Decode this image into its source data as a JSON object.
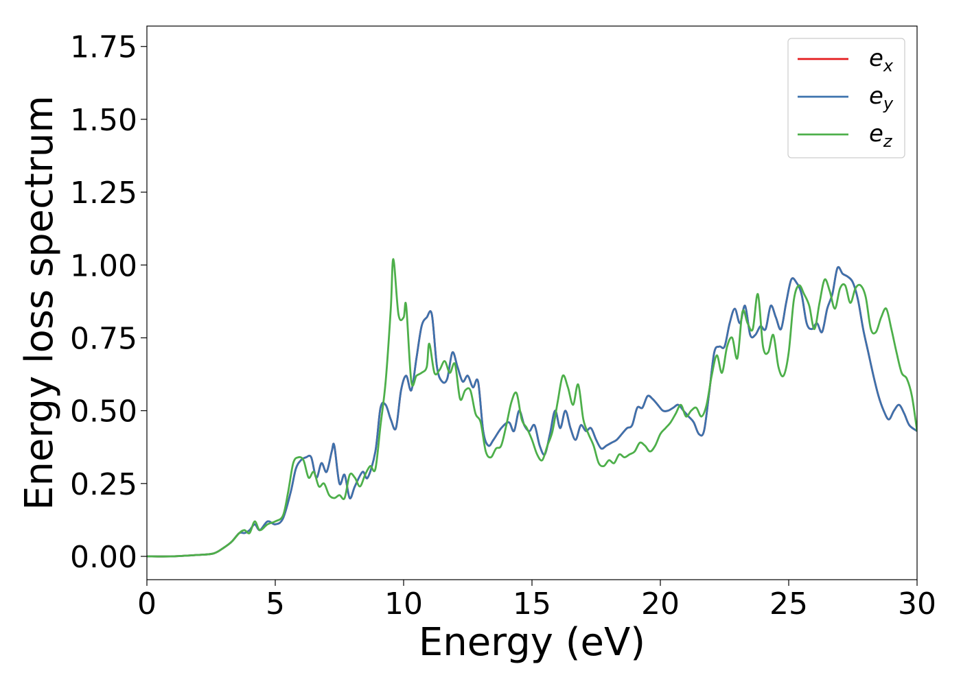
{
  "chart_data": {
    "type": "line",
    "xlabel": "Energy (eV)",
    "ylabel": "Energy loss spectrum",
    "xlim": [
      0,
      30
    ],
    "ylim": [
      -0.08,
      1.82
    ],
    "xticks": [
      0,
      5,
      10,
      15,
      20,
      25,
      30
    ],
    "xtick_labels": [
      "0",
      "5",
      "10",
      "15",
      "20",
      "25",
      "30"
    ],
    "yticks": [
      0.0,
      0.25,
      0.5,
      0.75,
      1.0,
      1.25,
      1.5,
      1.75
    ],
    "ytick_labels": [
      "0.00",
      "0.25",
      "0.50",
      "0.75",
      "1.00",
      "1.25",
      "1.50",
      "1.75"
    ],
    "grid": false,
    "legend_position": "top-right",
    "series": [
      {
        "name": "e_x",
        "label_base": "e",
        "label_sub": "x",
        "color": "#e41a1c",
        "x": [
          0,
          1,
          2,
          2.6,
          3.0,
          3.3,
          3.6,
          3.8,
          4.0,
          4.2,
          4.4,
          4.7,
          5.0,
          5.3,
          5.6,
          5.8,
          6.0,
          6.2,
          6.4,
          6.6,
          6.8,
          7.0,
          7.2,
          7.3,
          7.5,
          7.7,
          7.9,
          8.1,
          8.4,
          8.6,
          8.9,
          9.1,
          9.3,
          9.5,
          9.7,
          9.9,
          10.1,
          10.3,
          10.5,
          10.7,
          10.9,
          11.1,
          11.3,
          11.5,
          11.7,
          11.9,
          12.1,
          12.3,
          12.5,
          12.7,
          12.9,
          13.1,
          13.3,
          13.5,
          13.8,
          14.1,
          14.3,
          14.5,
          14.7,
          14.9,
          15.1,
          15.3,
          15.5,
          15.7,
          15.9,
          16.1,
          16.3,
          16.5,
          16.7,
          16.9,
          17.1,
          17.3,
          17.5,
          17.7,
          17.9,
          18.1,
          18.3,
          18.5,
          18.7,
          18.9,
          19.1,
          19.3,
          19.5,
          19.7,
          19.9,
          20.1,
          20.3,
          20.5,
          20.7,
          20.9,
          21.1,
          21.3,
          21.5,
          21.7,
          21.9,
          22.1,
          22.3,
          22.5,
          22.7,
          22.9,
          23.1,
          23.3,
          23.5,
          23.7,
          23.9,
          24.1,
          24.3,
          24.5,
          24.7,
          24.9,
          25.1,
          25.3,
          25.5,
          25.7,
          25.9,
          26.1,
          26.3,
          26.5,
          26.7,
          26.9,
          27.1,
          27.3,
          27.5,
          27.7,
          27.9,
          28.1,
          28.3,
          28.5,
          28.7,
          28.9,
          29.1,
          29.3,
          29.5,
          29.7,
          30.0
        ],
        "y": [
          0.0,
          0.0,
          0.005,
          0.01,
          0.03,
          0.05,
          0.08,
          0.08,
          0.09,
          0.11,
          0.09,
          0.12,
          0.11,
          0.13,
          0.22,
          0.3,
          0.33,
          0.34,
          0.34,
          0.27,
          0.32,
          0.29,
          0.36,
          0.38,
          0.25,
          0.28,
          0.2,
          0.24,
          0.29,
          0.27,
          0.36,
          0.51,
          0.52,
          0.47,
          0.44,
          0.57,
          0.62,
          0.57,
          0.68,
          0.79,
          0.82,
          0.83,
          0.65,
          0.6,
          0.61,
          0.7,
          0.65,
          0.6,
          0.62,
          0.58,
          0.6,
          0.43,
          0.38,
          0.4,
          0.44,
          0.46,
          0.43,
          0.5,
          0.45,
          0.43,
          0.45,
          0.38,
          0.35,
          0.42,
          0.5,
          0.44,
          0.5,
          0.44,
          0.4,
          0.45,
          0.43,
          0.44,
          0.4,
          0.37,
          0.38,
          0.39,
          0.4,
          0.42,
          0.44,
          0.45,
          0.51,
          0.51,
          0.55,
          0.54,
          0.52,
          0.5,
          0.5,
          0.51,
          0.52,
          0.5,
          0.48,
          0.46,
          0.42,
          0.43,
          0.56,
          0.7,
          0.72,
          0.72,
          0.8,
          0.85,
          0.8,
          0.86,
          0.76,
          0.76,
          0.79,
          0.78,
          0.86,
          0.82,
          0.78,
          0.87,
          0.95,
          0.94,
          0.9,
          0.8,
          0.78,
          0.8,
          0.77,
          0.85,
          0.9,
          0.99,
          0.97,
          0.96,
          0.94,
          0.88,
          0.78,
          0.7,
          0.62,
          0.55,
          0.5,
          0.47,
          0.5,
          0.52,
          0.49,
          0.45,
          0.43
        ]
      },
      {
        "name": "e_y",
        "label_base": "e",
        "label_sub": "y",
        "color": "#3c72ad",
        "x": [
          0,
          1,
          2,
          2.6,
          3.0,
          3.3,
          3.6,
          3.8,
          4.0,
          4.2,
          4.4,
          4.7,
          5.0,
          5.3,
          5.6,
          5.8,
          6.0,
          6.2,
          6.4,
          6.6,
          6.8,
          7.0,
          7.2,
          7.3,
          7.5,
          7.7,
          7.9,
          8.1,
          8.4,
          8.6,
          8.9,
          9.1,
          9.3,
          9.5,
          9.7,
          9.9,
          10.1,
          10.3,
          10.5,
          10.7,
          10.9,
          11.1,
          11.3,
          11.5,
          11.7,
          11.9,
          12.1,
          12.3,
          12.5,
          12.7,
          12.9,
          13.1,
          13.3,
          13.5,
          13.8,
          14.1,
          14.3,
          14.5,
          14.7,
          14.9,
          15.1,
          15.3,
          15.5,
          15.7,
          15.9,
          16.1,
          16.3,
          16.5,
          16.7,
          16.9,
          17.1,
          17.3,
          17.5,
          17.7,
          17.9,
          18.1,
          18.3,
          18.5,
          18.7,
          18.9,
          19.1,
          19.3,
          19.5,
          19.7,
          19.9,
          20.1,
          20.3,
          20.5,
          20.7,
          20.9,
          21.1,
          21.3,
          21.5,
          21.7,
          21.9,
          22.1,
          22.3,
          22.5,
          22.7,
          22.9,
          23.1,
          23.3,
          23.5,
          23.7,
          23.9,
          24.1,
          24.3,
          24.5,
          24.7,
          24.9,
          25.1,
          25.3,
          25.5,
          25.7,
          25.9,
          26.1,
          26.3,
          26.5,
          26.7,
          26.9,
          27.1,
          27.3,
          27.5,
          27.7,
          27.9,
          28.1,
          28.3,
          28.5,
          28.7,
          28.9,
          29.1,
          29.3,
          29.5,
          29.7,
          30.0
        ],
        "y": [
          0.0,
          0.0,
          0.005,
          0.01,
          0.03,
          0.05,
          0.08,
          0.08,
          0.09,
          0.11,
          0.09,
          0.12,
          0.11,
          0.13,
          0.22,
          0.3,
          0.33,
          0.34,
          0.34,
          0.27,
          0.32,
          0.29,
          0.36,
          0.38,
          0.25,
          0.28,
          0.2,
          0.24,
          0.29,
          0.27,
          0.36,
          0.51,
          0.52,
          0.47,
          0.44,
          0.57,
          0.62,
          0.57,
          0.68,
          0.79,
          0.82,
          0.83,
          0.65,
          0.6,
          0.61,
          0.7,
          0.65,
          0.6,
          0.62,
          0.58,
          0.6,
          0.43,
          0.38,
          0.4,
          0.44,
          0.46,
          0.43,
          0.5,
          0.45,
          0.43,
          0.45,
          0.38,
          0.35,
          0.42,
          0.5,
          0.44,
          0.5,
          0.44,
          0.4,
          0.45,
          0.43,
          0.44,
          0.4,
          0.37,
          0.38,
          0.39,
          0.4,
          0.42,
          0.44,
          0.45,
          0.51,
          0.51,
          0.55,
          0.54,
          0.52,
          0.5,
          0.5,
          0.51,
          0.52,
          0.5,
          0.48,
          0.46,
          0.42,
          0.43,
          0.56,
          0.7,
          0.72,
          0.72,
          0.8,
          0.85,
          0.8,
          0.86,
          0.76,
          0.76,
          0.79,
          0.78,
          0.86,
          0.82,
          0.78,
          0.87,
          0.95,
          0.94,
          0.9,
          0.8,
          0.78,
          0.8,
          0.77,
          0.85,
          0.9,
          0.99,
          0.97,
          0.96,
          0.94,
          0.88,
          0.78,
          0.7,
          0.62,
          0.55,
          0.5,
          0.47,
          0.5,
          0.52,
          0.49,
          0.45,
          0.43
        ]
      },
      {
        "name": "e_z",
        "label_base": "e",
        "label_sub": "z",
        "color": "#4daf4a",
        "x": [
          0,
          1,
          2,
          2.6,
          3.0,
          3.3,
          3.6,
          3.8,
          4.0,
          4.2,
          4.4,
          4.7,
          5.0,
          5.3,
          5.5,
          5.7,
          5.9,
          6.1,
          6.3,
          6.5,
          6.7,
          6.9,
          7.1,
          7.3,
          7.5,
          7.7,
          7.9,
          8.1,
          8.3,
          8.5,
          8.7,
          8.9,
          9.1,
          9.3,
          9.5,
          9.6,
          9.8,
          10.0,
          10.1,
          10.3,
          10.5,
          10.7,
          10.9,
          11.0,
          11.2,
          11.4,
          11.6,
          11.8,
          12.0,
          12.2,
          12.4,
          12.6,
          12.8,
          13.0,
          13.2,
          13.4,
          13.6,
          13.8,
          14.0,
          14.2,
          14.4,
          14.6,
          14.8,
          15.0,
          15.2,
          15.4,
          15.6,
          15.8,
          16.0,
          16.2,
          16.4,
          16.6,
          16.8,
          17.0,
          17.2,
          17.4,
          17.6,
          17.8,
          18.0,
          18.2,
          18.4,
          18.6,
          18.8,
          19.0,
          19.2,
          19.4,
          19.6,
          19.8,
          20.0,
          20.2,
          20.4,
          20.6,
          20.8,
          21.0,
          21.2,
          21.4,
          21.6,
          21.8,
          22.0,
          22.2,
          22.4,
          22.6,
          22.8,
          23.0,
          23.2,
          23.4,
          23.6,
          23.8,
          24.0,
          24.2,
          24.4,
          24.6,
          24.8,
          25.0,
          25.2,
          25.4,
          25.6,
          25.8,
          26.0,
          26.2,
          26.4,
          26.6,
          26.8,
          27.0,
          27.2,
          27.4,
          27.6,
          27.8,
          28.0,
          28.2,
          28.4,
          28.6,
          28.8,
          29.0,
          29.2,
          29.4,
          29.6,
          29.8,
          30.0
        ],
        "y": [
          0.0,
          0.0,
          0.005,
          0.01,
          0.03,
          0.05,
          0.08,
          0.09,
          0.08,
          0.12,
          0.09,
          0.11,
          0.12,
          0.14,
          0.22,
          0.32,
          0.34,
          0.33,
          0.27,
          0.29,
          0.24,
          0.25,
          0.21,
          0.2,
          0.21,
          0.2,
          0.28,
          0.27,
          0.24,
          0.28,
          0.31,
          0.3,
          0.45,
          0.6,
          0.85,
          1.02,
          0.83,
          0.82,
          0.86,
          0.6,
          0.62,
          0.63,
          0.65,
          0.73,
          0.63,
          0.64,
          0.67,
          0.63,
          0.66,
          0.54,
          0.57,
          0.57,
          0.49,
          0.46,
          0.36,
          0.34,
          0.37,
          0.38,
          0.45,
          0.53,
          0.56,
          0.47,
          0.44,
          0.4,
          0.35,
          0.33,
          0.38,
          0.43,
          0.53,
          0.62,
          0.58,
          0.52,
          0.59,
          0.47,
          0.42,
          0.38,
          0.32,
          0.31,
          0.33,
          0.32,
          0.35,
          0.34,
          0.35,
          0.36,
          0.39,
          0.38,
          0.36,
          0.38,
          0.42,
          0.44,
          0.46,
          0.49,
          0.52,
          0.48,
          0.5,
          0.51,
          0.48,
          0.52,
          0.62,
          0.69,
          0.63,
          0.72,
          0.75,
          0.68,
          0.84,
          0.8,
          0.78,
          0.9,
          0.72,
          0.7,
          0.76,
          0.65,
          0.62,
          0.7,
          0.88,
          0.93,
          0.9,
          0.86,
          0.78,
          0.87,
          0.95,
          0.91,
          0.85,
          0.92,
          0.93,
          0.87,
          0.92,
          0.93,
          0.89,
          0.78,
          0.77,
          0.82,
          0.85,
          0.78,
          0.7,
          0.63,
          0.61,
          0.55,
          0.43
        ]
      }
    ]
  }
}
